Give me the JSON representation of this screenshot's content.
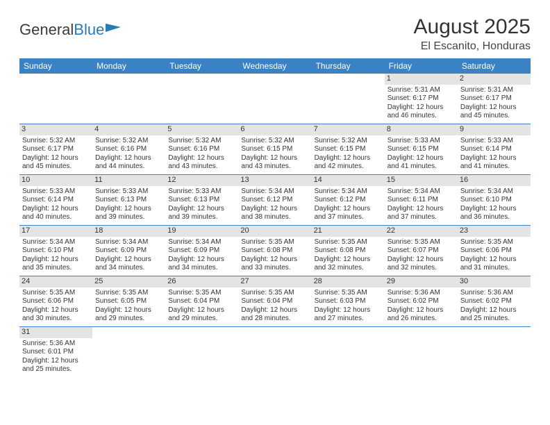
{
  "logo": {
    "text_a": "General",
    "text_b": "Blue",
    "flag_color": "#2a7ab8"
  },
  "title": "August 2025",
  "location": "El Escanito, Honduras",
  "colors": {
    "header_bg": "#3a82c4",
    "header_fg": "#ffffff",
    "daynum_bg": "#e4e4e4",
    "rule": "#3a82c4",
    "text": "#333333"
  },
  "day_names": [
    "Sunday",
    "Monday",
    "Tuesday",
    "Wednesday",
    "Thursday",
    "Friday",
    "Saturday"
  ],
  "weeks": [
    [
      null,
      null,
      null,
      null,
      null,
      {
        "n": "1",
        "sunrise": "5:31 AM",
        "sunset": "6:17 PM",
        "dl1": "Daylight: 12 hours",
        "dl2": "and 46 minutes."
      },
      {
        "n": "2",
        "sunrise": "5:31 AM",
        "sunset": "6:17 PM",
        "dl1": "Daylight: 12 hours",
        "dl2": "and 45 minutes."
      }
    ],
    [
      {
        "n": "3",
        "sunrise": "5:32 AM",
        "sunset": "6:17 PM",
        "dl1": "Daylight: 12 hours",
        "dl2": "and 45 minutes."
      },
      {
        "n": "4",
        "sunrise": "5:32 AM",
        "sunset": "6:16 PM",
        "dl1": "Daylight: 12 hours",
        "dl2": "and 44 minutes."
      },
      {
        "n": "5",
        "sunrise": "5:32 AM",
        "sunset": "6:16 PM",
        "dl1": "Daylight: 12 hours",
        "dl2": "and 43 minutes."
      },
      {
        "n": "6",
        "sunrise": "5:32 AM",
        "sunset": "6:15 PM",
        "dl1": "Daylight: 12 hours",
        "dl2": "and 43 minutes."
      },
      {
        "n": "7",
        "sunrise": "5:32 AM",
        "sunset": "6:15 PM",
        "dl1": "Daylight: 12 hours",
        "dl2": "and 42 minutes."
      },
      {
        "n": "8",
        "sunrise": "5:33 AM",
        "sunset": "6:15 PM",
        "dl1": "Daylight: 12 hours",
        "dl2": "and 41 minutes."
      },
      {
        "n": "9",
        "sunrise": "5:33 AM",
        "sunset": "6:14 PM",
        "dl1": "Daylight: 12 hours",
        "dl2": "and 41 minutes."
      }
    ],
    [
      {
        "n": "10",
        "sunrise": "5:33 AM",
        "sunset": "6:14 PM",
        "dl1": "Daylight: 12 hours",
        "dl2": "and 40 minutes."
      },
      {
        "n": "11",
        "sunrise": "5:33 AM",
        "sunset": "6:13 PM",
        "dl1": "Daylight: 12 hours",
        "dl2": "and 39 minutes."
      },
      {
        "n": "12",
        "sunrise": "5:33 AM",
        "sunset": "6:13 PM",
        "dl1": "Daylight: 12 hours",
        "dl2": "and 39 minutes."
      },
      {
        "n": "13",
        "sunrise": "5:34 AM",
        "sunset": "6:12 PM",
        "dl1": "Daylight: 12 hours",
        "dl2": "and 38 minutes."
      },
      {
        "n": "14",
        "sunrise": "5:34 AM",
        "sunset": "6:12 PM",
        "dl1": "Daylight: 12 hours",
        "dl2": "and 37 minutes."
      },
      {
        "n": "15",
        "sunrise": "5:34 AM",
        "sunset": "6:11 PM",
        "dl1": "Daylight: 12 hours",
        "dl2": "and 37 minutes."
      },
      {
        "n": "16",
        "sunrise": "5:34 AM",
        "sunset": "6:10 PM",
        "dl1": "Daylight: 12 hours",
        "dl2": "and 36 minutes."
      }
    ],
    [
      {
        "n": "17",
        "sunrise": "5:34 AM",
        "sunset": "6:10 PM",
        "dl1": "Daylight: 12 hours",
        "dl2": "and 35 minutes."
      },
      {
        "n": "18",
        "sunrise": "5:34 AM",
        "sunset": "6:09 PM",
        "dl1": "Daylight: 12 hours",
        "dl2": "and 34 minutes."
      },
      {
        "n": "19",
        "sunrise": "5:34 AM",
        "sunset": "6:09 PM",
        "dl1": "Daylight: 12 hours",
        "dl2": "and 34 minutes."
      },
      {
        "n": "20",
        "sunrise": "5:35 AM",
        "sunset": "6:08 PM",
        "dl1": "Daylight: 12 hours",
        "dl2": "and 33 minutes."
      },
      {
        "n": "21",
        "sunrise": "5:35 AM",
        "sunset": "6:08 PM",
        "dl1": "Daylight: 12 hours",
        "dl2": "and 32 minutes."
      },
      {
        "n": "22",
        "sunrise": "5:35 AM",
        "sunset": "6:07 PM",
        "dl1": "Daylight: 12 hours",
        "dl2": "and 32 minutes."
      },
      {
        "n": "23",
        "sunrise": "5:35 AM",
        "sunset": "6:06 PM",
        "dl1": "Daylight: 12 hours",
        "dl2": "and 31 minutes."
      }
    ],
    [
      {
        "n": "24",
        "sunrise": "5:35 AM",
        "sunset": "6:06 PM",
        "dl1": "Daylight: 12 hours",
        "dl2": "and 30 minutes."
      },
      {
        "n": "25",
        "sunrise": "5:35 AM",
        "sunset": "6:05 PM",
        "dl1": "Daylight: 12 hours",
        "dl2": "and 29 minutes."
      },
      {
        "n": "26",
        "sunrise": "5:35 AM",
        "sunset": "6:04 PM",
        "dl1": "Daylight: 12 hours",
        "dl2": "and 29 minutes."
      },
      {
        "n": "27",
        "sunrise": "5:35 AM",
        "sunset": "6:04 PM",
        "dl1": "Daylight: 12 hours",
        "dl2": "and 28 minutes."
      },
      {
        "n": "28",
        "sunrise": "5:35 AM",
        "sunset": "6:03 PM",
        "dl1": "Daylight: 12 hours",
        "dl2": "and 27 minutes."
      },
      {
        "n": "29",
        "sunrise": "5:36 AM",
        "sunset": "6:02 PM",
        "dl1": "Daylight: 12 hours",
        "dl2": "and 26 minutes."
      },
      {
        "n": "30",
        "sunrise": "5:36 AM",
        "sunset": "6:02 PM",
        "dl1": "Daylight: 12 hours",
        "dl2": "and 25 minutes."
      }
    ],
    [
      {
        "n": "31",
        "sunrise": "5:36 AM",
        "sunset": "6:01 PM",
        "dl1": "Daylight: 12 hours",
        "dl2": "and 25 minutes."
      },
      null,
      null,
      null,
      null,
      null,
      null
    ]
  ],
  "labels": {
    "sunrise": "Sunrise: ",
    "sunset": "Sunset: "
  }
}
